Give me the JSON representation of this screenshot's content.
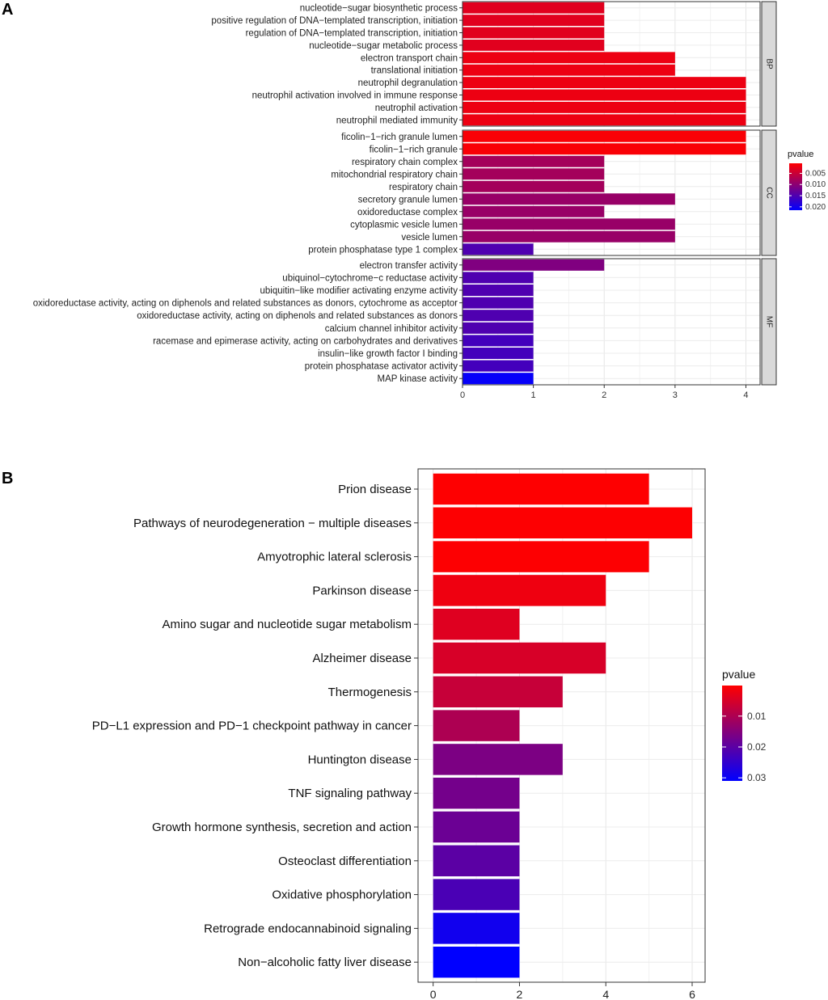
{
  "chart_data": [
    {
      "panel": "A",
      "type": "bar",
      "orientation": "horizontal",
      "facets": [
        {
          "name": "BP",
          "categories": [
            "nucleotide−sugar biosynthetic process",
            "positive regulation of DNA−templated transcription, initiation",
            "regulation of DNA−templated transcription, initiation",
            "nucleotide−sugar metabolic process",
            "electron transport chain",
            "translational initiation",
            "neutrophil degranulation",
            "neutrophil activation involved in immune response",
            "neutrophil activation",
            "neutrophil mediated immunity"
          ],
          "values": [
            2,
            2,
            2,
            2,
            3,
            3,
            4,
            4,
            4,
            4
          ],
          "pvalues": [
            0.003,
            0.003,
            0.003,
            0.003,
            0.002,
            0.002,
            0.002,
            0.002,
            0.002,
            0.002
          ]
        },
        {
          "name": "CC",
          "categories": [
            "ficolin−1−rich granule lumen",
            "ficolin−1−rich granule",
            "respiratory chain complex",
            "mitochondrial respiratory chain",
            "respiratory chain",
            "secretory granule lumen",
            "oxidoreductase complex",
            "cytoplasmic vesicle lumen",
            "vesicle lumen",
            "protein phosphatase type 1 complex"
          ],
          "values": [
            4,
            4,
            2,
            2,
            2,
            3,
            2,
            3,
            3,
            1
          ],
          "pvalues": [
            0.001,
            0.001,
            0.008,
            0.008,
            0.008,
            0.009,
            0.009,
            0.009,
            0.009,
            0.015
          ]
        },
        {
          "name": "MF",
          "categories": [
            "electron transfer activity",
            "ubiquinol−cytochrome−c reductase activity",
            "ubiquitin−like modifier activating enzyme activity",
            "oxidoreductase activity, acting on diphenols and related substances as donors, cytochrome as acceptor",
            "oxidoreductase activity, acting on diphenols and related substances as donors",
            "calcium channel inhibitor activity",
            "racemase and epimerase activity, acting on carbohydrates and derivatives",
            "insulin−like growth factor I binding",
            "protein phosphatase activator activity",
            "MAP kinase activity"
          ],
          "values": [
            2,
            1,
            1,
            1,
            1,
            1,
            1,
            1,
            1,
            1
          ],
          "pvalues": [
            0.011,
            0.015,
            0.015,
            0.015,
            0.015,
            0.015,
            0.016,
            0.016,
            0.016,
            0.021
          ]
        }
      ],
      "xlim": [
        0,
        4.2
      ],
      "xticks": [
        0,
        1,
        2,
        3,
        4
      ],
      "legend": {
        "title": "pvalue",
        "ticks": [
          "0.005",
          "0.010",
          "0.015",
          "0.020"
        ],
        "tick_values": [
          0.005,
          0.01,
          0.015,
          0.02
        ],
        "range": [
          0.0005,
          0.0215
        ],
        "low_color": "#ff0000",
        "high_color": "#0000ff",
        "position": "right"
      },
      "grid": true
    },
    {
      "panel": "B",
      "type": "bar",
      "orientation": "horizontal",
      "categories": [
        "Prion disease",
        "Pathways of neurodegeneration − multiple diseases",
        "Amyotrophic lateral sclerosis",
        "Parkinson disease",
        "Amino sugar and nucleotide sugar metabolism",
        "Alzheimer disease",
        "Thermogenesis",
        "PD−L1 expression and PD−1 checkpoint pathway in cancer",
        "Huntington disease",
        "TNF signaling pathway",
        "Growth hormone synthesis, secretion and action",
        "Osteoclast differentiation",
        "Oxidative phosphorylation",
        "Retrograde endocannabinoid signaling",
        "Non−alcoholic fatty liver disease"
      ],
      "values": [
        5,
        6,
        5,
        4,
        2,
        4,
        3,
        2,
        3,
        2,
        2,
        2,
        2,
        2,
        2
      ],
      "pvalues": [
        0.0002,
        0.0003,
        0.0004,
        0.002,
        0.004,
        0.005,
        0.007,
        0.01,
        0.016,
        0.017,
        0.018,
        0.02,
        0.022,
        0.029,
        0.031
      ],
      "xlim": [
        -0.35,
        6.3
      ],
      "xticks": [
        0,
        2,
        4,
        6
      ],
      "legend": {
        "title": "pvalue",
        "ticks": [
          "0.01",
          "0.02",
          "0.03"
        ],
        "tick_values": [
          0.01,
          0.02,
          0.03
        ],
        "range": [
          0.0001,
          0.031
        ],
        "low_color": "#ff0000",
        "high_color": "#0000ff",
        "position": "right"
      },
      "grid": true
    }
  ]
}
